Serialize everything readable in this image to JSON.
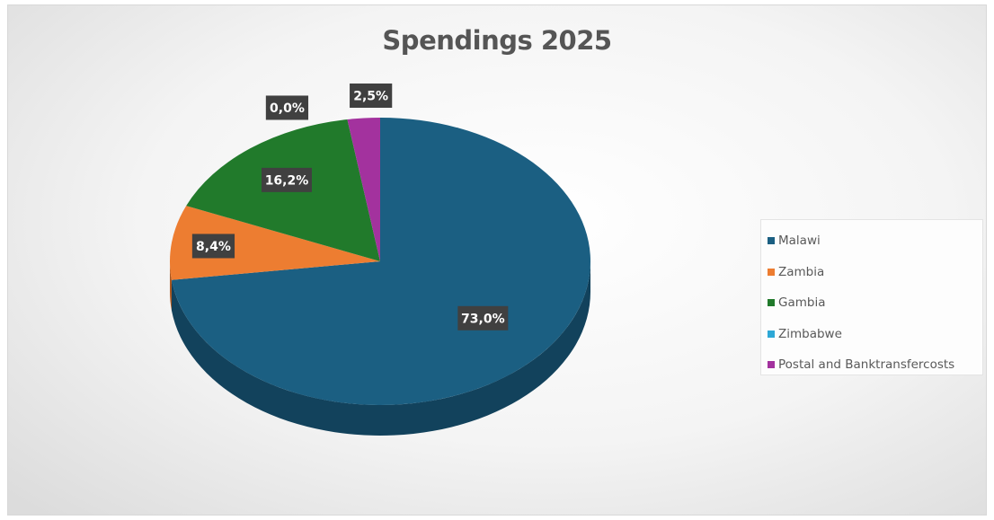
{
  "chart_data": {
    "type": "pie",
    "title": "Spendings 2025",
    "categories": [
      "Malawi",
      "Zambia",
      "Gambia",
      "Zimbabwe",
      "Postal and Banktransfercosts"
    ],
    "values": [
      73.0,
      8.4,
      16.2,
      0.0,
      2.5
    ],
    "labels": [
      "73,0%",
      "8,4%",
      "16,2%",
      "0,0%",
      "2,5%"
    ],
    "colors": [
      "#1b5f82",
      "#ed7d31",
      "#217a2b",
      "#2ea8d6",
      "#a3329e"
    ],
    "side_colors": [
      "#12425c",
      "#a8561f",
      "#15521c",
      "#1f7a9c",
      "#6e2069"
    ],
    "legend_position": "right",
    "style": "3d"
  }
}
